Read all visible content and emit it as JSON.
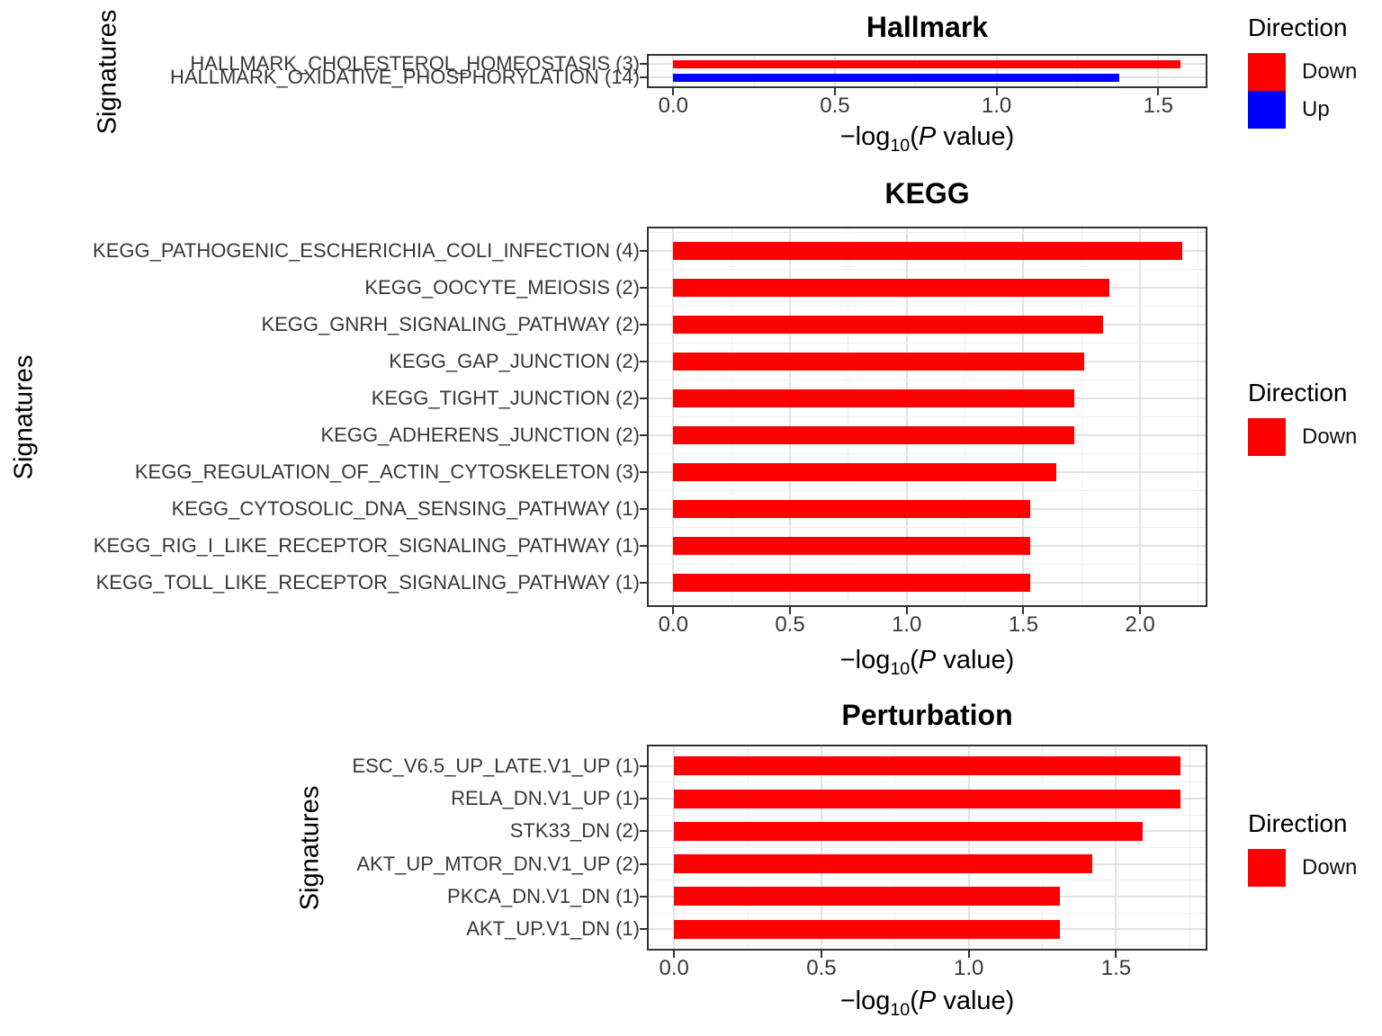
{
  "figure": {
    "background": "#FFFFFF"
  },
  "colors": {
    "Down": "#FF0000",
    "Up": "#0000FF"
  },
  "chart_data": [
    {
      "type": "bar",
      "orientation": "horizontal",
      "title": "Hallmark",
      "ylabel": "Signatures",
      "xlabel": "-log10(P value)",
      "grid": true,
      "legend": {
        "title": "Direction",
        "position": "right",
        "entries": [
          "Down",
          "Up"
        ]
      },
      "xticks": [
        "0.0",
        "0.5",
        "1.0",
        "1.5"
      ],
      "xlim": [
        0,
        1.65
      ],
      "categories": [
        "HALLMARK_CHOLESTEROL_HOMEOSTASIS (3)",
        "HALLMARK_OXIDATIVE_PHOSPHORYLATION (14)"
      ],
      "values": [
        1.57,
        1.38
      ],
      "directions": [
        "Down",
        "Up"
      ]
    },
    {
      "type": "bar",
      "orientation": "horizontal",
      "title": "KEGG",
      "ylabel": "Signatures",
      "xlabel": "-log10(P value)",
      "grid": true,
      "legend": {
        "title": "Direction",
        "position": "right",
        "entries": [
          "Down"
        ]
      },
      "xticks": [
        "0.0",
        "0.5",
        "1.0",
        "1.5",
        "2.0"
      ],
      "xlim": [
        0,
        2.28
      ],
      "categories": [
        "KEGG_PATHOGENIC_ESCHERICHIA_COLI_INFECTION (4)",
        "KEGG_OOCYTE_MEIOSIS (2)",
        "KEGG_GNRH_SIGNALING_PATHWAY (2)",
        "KEGG_GAP_JUNCTION (2)",
        "KEGG_TIGHT_JUNCTION (2)",
        "KEGG_ADHERENS_JUNCTION (2)",
        "KEGG_REGULATION_OF_ACTIN_CYTOSKELETON (3)",
        "KEGG_CYTOSOLIC_DNA_SENSING_PATHWAY (1)",
        "KEGG_RIG_I_LIKE_RECEPTOR_SIGNALING_PATHWAY (1)",
        "KEGG_TOLL_LIKE_RECEPTOR_SIGNALING_PATHWAY (1)"
      ],
      "values": [
        2.18,
        1.87,
        1.84,
        1.76,
        1.72,
        1.72,
        1.64,
        1.53,
        1.53,
        1.53
      ],
      "directions": [
        "Down",
        "Down",
        "Down",
        "Down",
        "Down",
        "Down",
        "Down",
        "Down",
        "Down",
        "Down"
      ]
    },
    {
      "type": "bar",
      "orientation": "horizontal",
      "title": "Perturbation",
      "ylabel": "Signatures",
      "xlabel": "-log10(P value)",
      "grid": true,
      "legend": {
        "title": "Direction",
        "position": "right",
        "entries": [
          "Down"
        ]
      },
      "xticks": [
        "0.0",
        "0.5",
        "1.0",
        "1.5"
      ],
      "xlim": [
        0,
        1.81
      ],
      "categories": [
        "ESC_V6.5_UP_LATE.V1_UP (1)",
        "RELA_DN.V1_UP (1)",
        "STK33_DN (2)",
        "AKT_UP_MTOR_DN.V1_UP (2)",
        "PKCA_DN.V1_DN (1)",
        "AKT_UP.V1_DN (1)"
      ],
      "values": [
        1.72,
        1.72,
        1.59,
        1.42,
        1.31,
        1.31
      ],
      "directions": [
        "Down",
        "Down",
        "Down",
        "Down",
        "Down",
        "Down"
      ]
    }
  ]
}
